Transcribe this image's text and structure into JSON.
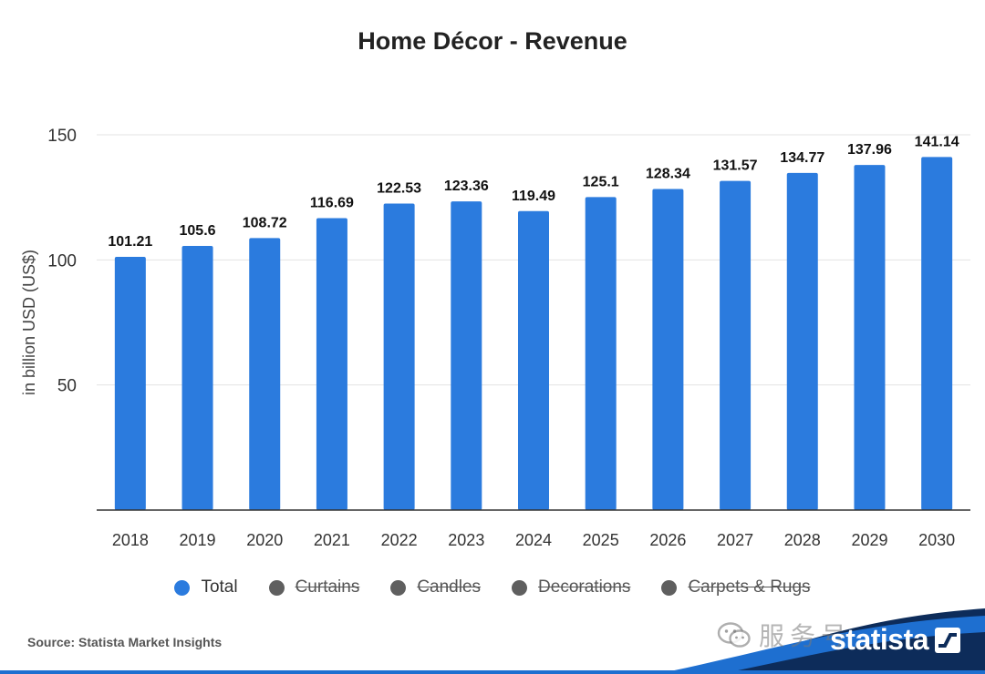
{
  "source": "Source: Statista Market Insights",
  "brand": "statista",
  "watermark": "服务号",
  "legend": [
    {
      "label": "Total",
      "color": "#2b7bde",
      "active": true
    },
    {
      "label": "Curtains",
      "color": "#5f5f5f",
      "active": false
    },
    {
      "label": "Candles",
      "color": "#5f5f5f",
      "active": false
    },
    {
      "label": "Decorations",
      "color": "#5f5f5f",
      "active": false
    },
    {
      "label": "Carpets & Rugs",
      "color": "#5f5f5f",
      "active": false
    }
  ],
  "colors": {
    "bar": "#2b7bde",
    "grid": "#e3e3e3",
    "axis": "#333333",
    "footer_wave": "#1e6fd0",
    "footer_navy": "#0d2c5a"
  },
  "chart_data": {
    "type": "bar",
    "title": "Home Décor - Revenue",
    "ylabel": "in billion USD (US$)",
    "xlabel": "",
    "ylim": [
      0,
      150
    ],
    "yticks": [
      50,
      100,
      150
    ],
    "categories": [
      "2018",
      "2019",
      "2020",
      "2021",
      "2022",
      "2023",
      "2024",
      "2025",
      "2026",
      "2027",
      "2028",
      "2029",
      "2030"
    ],
    "series": [
      {
        "name": "Total",
        "values": [
          101.21,
          105.6,
          108.72,
          116.69,
          122.53,
          123.36,
          119.49,
          125.1,
          128.34,
          131.57,
          134.77,
          137.96,
          141.14
        ]
      }
    ],
    "grid": true,
    "legend_position": "bottom"
  }
}
